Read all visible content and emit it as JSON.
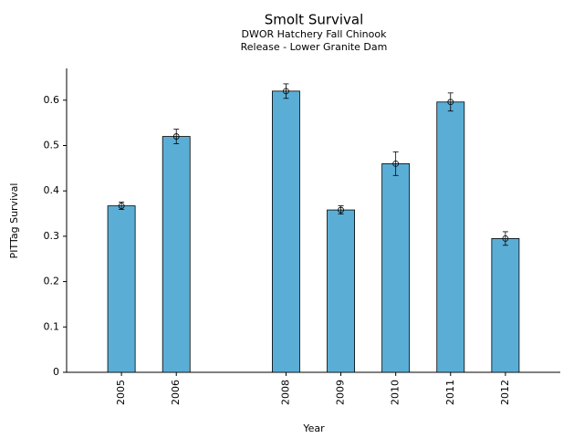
{
  "chart_data": {
    "type": "bar",
    "title": "Smolt Survival",
    "subtitle": [
      "DWOR Hatchery Fall Chinook",
      "Release - Lower Granite Dam"
    ],
    "xlabel": "Year",
    "ylabel": "PITTag Survival",
    "x": [
      2005,
      2006,
      2008,
      2009,
      2010,
      2011,
      2012
    ],
    "values": [
      0.367,
      0.52,
      0.62,
      0.358,
      0.46,
      0.596,
      0.295
    ],
    "errors": [
      0.008,
      0.016,
      0.016,
      0.009,
      0.026,
      0.02,
      0.015
    ],
    "color": "#5aaed6",
    "xlim": [
      2004,
      2013
    ],
    "xticks": [
      2005,
      2006,
      2008,
      2009,
      2010,
      2011,
      2012
    ],
    "ylim": [
      0,
      0.67
    ],
    "yticks": [
      0,
      0.1,
      0.2,
      0.3,
      0.4,
      0.5,
      0.6
    ],
    "grid": false
  }
}
